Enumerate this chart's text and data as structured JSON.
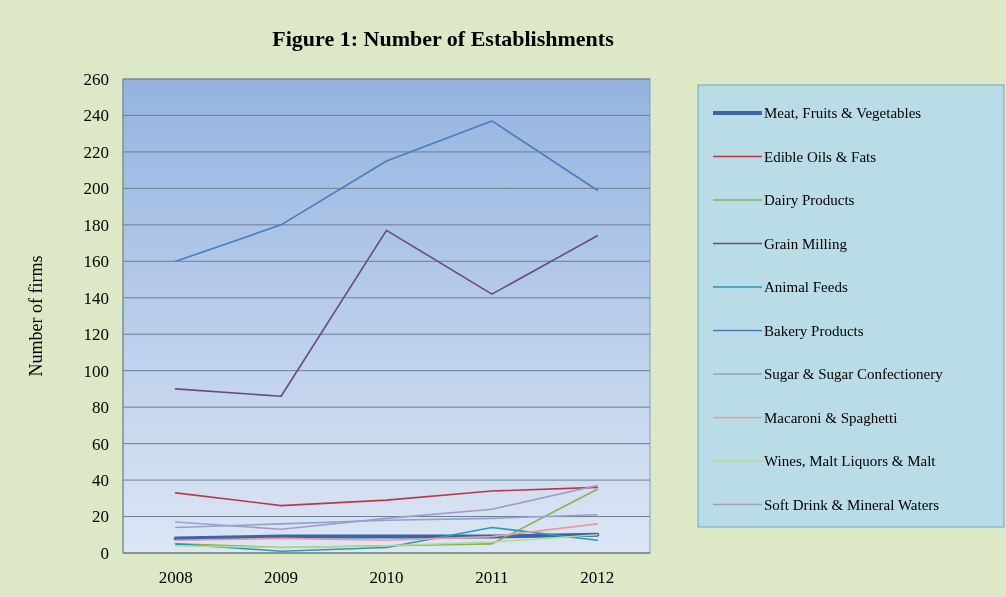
{
  "chart_data": {
    "type": "line",
    "title": "Figure 1: Number of Establishments",
    "ylabel": "Number of firms",
    "categories": [
      "2008",
      "2009",
      "2010",
      "2011",
      "2012"
    ],
    "ylim": [
      0,
      260
    ],
    "yticks": [
      0,
      20,
      40,
      60,
      80,
      100,
      120,
      140,
      160,
      180,
      200,
      220,
      240,
      260
    ],
    "grid": "y",
    "legend": "right",
    "series": [
      {
        "name": "Meat, Fruits & Vegetables",
        "color": "#3a65a8",
        "values": [
          8,
          9,
          9,
          9,
          10
        ]
      },
      {
        "name": "Edible Oils & Fats",
        "color": "#b83a4a",
        "values": [
          33,
          26,
          29,
          34,
          36
        ]
      },
      {
        "name": "Dairy Products",
        "color": "#8cb050",
        "values": [
          5,
          3,
          4,
          5,
          35
        ]
      },
      {
        "name": "Grain Milling",
        "color": "#6a4a88",
        "values": [
          90,
          86,
          177,
          142,
          174
        ]
      },
      {
        "name": "Animal Feeds",
        "color": "#2a9ab0",
        "values": [
          5,
          1,
          3,
          14,
          7
        ]
      },
      {
        "name": "Bakery Products",
        "color": "#4a7cc0",
        "values": [
          160,
          180,
          215,
          237,
          199
        ]
      },
      {
        "name": "Sugar & Sugar Confectionery",
        "color": "#8ea4c8",
        "values": [
          14,
          16,
          18,
          19,
          21
        ]
      },
      {
        "name": "Macaroni & Spaghetti",
        "color": "#e89aa8",
        "values": [
          7,
          8,
          7,
          9,
          16
        ]
      },
      {
        "name": "Wines, Malt Liquors & Malt",
        "color": "#b8d890",
        "values": [
          4,
          3,
          4,
          6,
          10
        ]
      },
      {
        "name": "Soft Drink & Mineral Waters",
        "color": "#a898c8",
        "values": [
          17,
          13,
          19,
          24,
          37
        ]
      }
    ]
  }
}
